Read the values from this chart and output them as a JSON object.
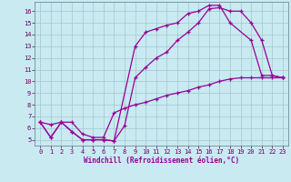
{
  "xlabel": "Windchill (Refroidissement éolien,°C)",
  "bg_color": "#c8eaf0",
  "line_color": "#990099",
  "grid_color": "#a0c8d0",
  "xlim": [
    -0.5,
    23.5
  ],
  "ylim": [
    4.5,
    16.8
  ],
  "xticks": [
    0,
    1,
    2,
    3,
    4,
    5,
    6,
    7,
    8,
    9,
    10,
    11,
    12,
    13,
    14,
    15,
    16,
    17,
    18,
    19,
    20,
    21,
    22,
    23
  ],
  "yticks": [
    5,
    6,
    7,
    8,
    9,
    10,
    11,
    12,
    13,
    14,
    15,
    16
  ],
  "line1_x": [
    0,
    1,
    2,
    3,
    4,
    5,
    6,
    7,
    9,
    10,
    11,
    12,
    13,
    14,
    15,
    16,
    17,
    18,
    20,
    21,
    22,
    23
  ],
  "line1_y": [
    6.5,
    5.2,
    6.5,
    5.7,
    5.0,
    5.0,
    5.0,
    4.9,
    13.0,
    14.2,
    14.5,
    14.8,
    15.0,
    15.8,
    16.0,
    16.5,
    16.5,
    15.0,
    13.5,
    10.5,
    10.5,
    10.3
  ],
  "line2_x": [
    0,
    1,
    2,
    3,
    4,
    5,
    6,
    7,
    8,
    9,
    10,
    11,
    12,
    13,
    14,
    15,
    16,
    17,
    18,
    19,
    20,
    21,
    22,
    23
  ],
  "line2_y": [
    6.5,
    5.2,
    6.5,
    5.7,
    5.0,
    5.0,
    5.0,
    4.9,
    6.2,
    10.3,
    11.2,
    12.0,
    12.5,
    13.5,
    14.2,
    15.0,
    16.2,
    16.3,
    16.0,
    16.0,
    15.0,
    13.5,
    10.5,
    10.3
  ],
  "line3_x": [
    0,
    1,
    2,
    3,
    4,
    5,
    6,
    7,
    8,
    9,
    10,
    11,
    12,
    13,
    14,
    15,
    16,
    17,
    18,
    19,
    20,
    21,
    22,
    23
  ],
  "line3_y": [
    6.5,
    6.3,
    6.5,
    6.5,
    5.5,
    5.2,
    5.2,
    7.3,
    7.7,
    8.0,
    8.2,
    8.5,
    8.8,
    9.0,
    9.2,
    9.5,
    9.7,
    10.0,
    10.2,
    10.3,
    10.3,
    10.3,
    10.3,
    10.3
  ]
}
